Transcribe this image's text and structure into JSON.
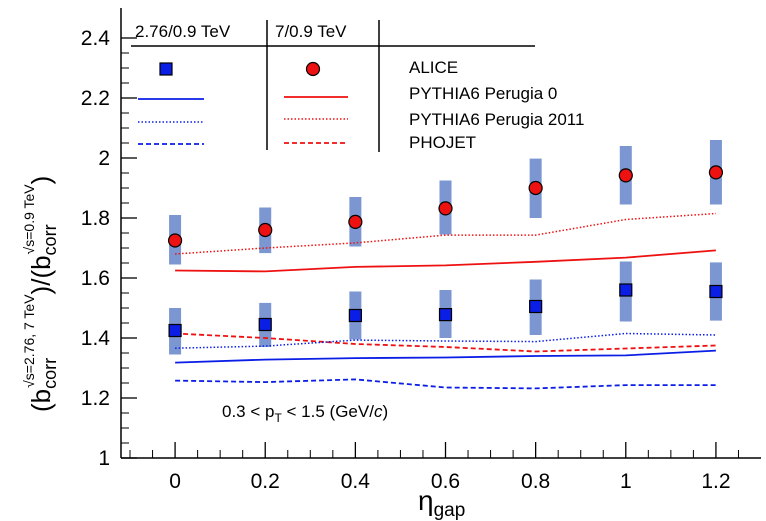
{
  "chart_data": {
    "type": "scatter",
    "xlim": [
      -0.12,
      1.3
    ],
    "ylim": [
      1.0,
      2.5
    ],
    "x_ticks": [
      0,
      0.2,
      0.4,
      0.6,
      0.8,
      1,
      1.2
    ],
    "x_tick_labels": [
      "0",
      "0.2",
      "0.4",
      "0.6",
      "0.8",
      "1",
      "1.2"
    ],
    "y_ticks": [
      1,
      1.2,
      1.4,
      1.6,
      1.8,
      2,
      2.2,
      2.4
    ],
    "y_tick_labels": [
      "1",
      "1.2",
      "1.4",
      "1.6",
      "1.8",
      "2",
      "2.2",
      "2.4"
    ],
    "xlabel": {
      "main": "η",
      "sub": "gap"
    },
    "ylabel": {
      "open": "(b",
      "corr1": "corr",
      "sup1": "√s=2.76, 7 TeV",
      "mid": ")/(b",
      "corr2": "corr",
      "sup2": "√s=0.9 TeV",
      "close": ")"
    },
    "annotation": "0.3 < p_T < 1.5  (GeV/c)",
    "annotation_parts": {
      "a": "0.3 < p",
      "sub": "T",
      "b": " < 1.5  (GeV/",
      "c": "c",
      "d": ")"
    },
    "legend": {
      "col_headers": [
        "2.76/0.9 TeV",
        "7/0.9 TeV"
      ],
      "rows": [
        "ALICE",
        "PYTHIA6 Perugia 0",
        "PYTHIA6 Perugia 2011",
        "PHOJET"
      ]
    },
    "series": [
      {
        "energy": "7/0.9 TeV",
        "kind": "ALICE",
        "marker": "circle",
        "color": "#ee1111",
        "band_color": "#7b96d0",
        "x": [
          0,
          0.2,
          0.4,
          0.6,
          0.8,
          1.0,
          1.2
        ],
        "y": [
          1.725,
          1.76,
          1.787,
          1.832,
          1.9,
          1.942,
          1.952
        ],
        "sys_low": [
          1.645,
          1.683,
          1.705,
          1.745,
          1.8,
          1.845,
          1.845
        ],
        "sys_high": [
          1.81,
          1.835,
          1.87,
          1.925,
          1.998,
          2.04,
          2.06
        ]
      },
      {
        "energy": "2.76/0.9 TeV",
        "kind": "ALICE",
        "marker": "square",
        "color": "#0a1ee6",
        "band_color": "#7b96d0",
        "x": [
          0,
          0.2,
          0.4,
          0.6,
          0.8,
          1.0,
          1.2
        ],
        "y": [
          1.425,
          1.445,
          1.475,
          1.478,
          1.505,
          1.56,
          1.555
        ],
        "sys_low": [
          1.345,
          1.37,
          1.395,
          1.4,
          1.41,
          1.455,
          1.458
        ],
        "sys_high": [
          1.5,
          1.517,
          1.555,
          1.56,
          1.595,
          1.655,
          1.652
        ]
      },
      {
        "energy": "7/0.9 TeV",
        "kind": "PYTHIA6 Perugia 0",
        "style": "solid",
        "color": "#ee1111",
        "x": [
          0,
          0.2,
          0.4,
          0.6,
          0.8,
          1.0,
          1.2
        ],
        "y": [
          1.625,
          1.622,
          1.637,
          1.642,
          1.654,
          1.668,
          1.692
        ]
      },
      {
        "energy": "7/0.9 TeV",
        "kind": "PYTHIA6 Perugia 2011",
        "style": "dotted",
        "color": "#ee1111",
        "x": [
          0,
          0.2,
          0.4,
          0.6,
          0.8,
          1.0,
          1.2
        ],
        "y": [
          1.68,
          1.7,
          1.717,
          1.743,
          1.743,
          1.795,
          1.815
        ]
      },
      {
        "energy": "7/0.9 TeV",
        "kind": "PHOJET",
        "style": "dashed",
        "color": "#ee1111",
        "x": [
          0,
          0.2,
          0.4,
          0.6,
          0.8,
          1.0,
          1.2
        ],
        "y": [
          1.415,
          1.4,
          1.38,
          1.37,
          1.355,
          1.365,
          1.375
        ]
      },
      {
        "energy": "2.76/0.9 TeV",
        "kind": "PYTHIA6 Perugia 0",
        "style": "solid",
        "color": "#0a1ee6",
        "x": [
          0,
          0.2,
          0.4,
          0.6,
          0.8,
          1.0,
          1.2
        ],
        "y": [
          1.318,
          1.328,
          1.333,
          1.335,
          1.34,
          1.342,
          1.358
        ]
      },
      {
        "energy": "2.76/0.9 TeV",
        "kind": "PYTHIA6 Perugia 2011",
        "style": "dotted",
        "color": "#0a1ee6",
        "x": [
          0,
          0.2,
          0.4,
          0.6,
          0.8,
          1.0,
          1.2
        ],
        "y": [
          1.366,
          1.373,
          1.393,
          1.39,
          1.388,
          1.415,
          1.41
        ]
      },
      {
        "energy": "2.76/0.9 TeV",
        "kind": "PHOJET",
        "style": "dashed",
        "color": "#0a1ee6",
        "x": [
          0,
          0.2,
          0.4,
          0.6,
          0.8,
          1.0,
          1.2
        ],
        "y": [
          1.258,
          1.253,
          1.262,
          1.235,
          1.232,
          1.243,
          1.243
        ]
      }
    ]
  }
}
